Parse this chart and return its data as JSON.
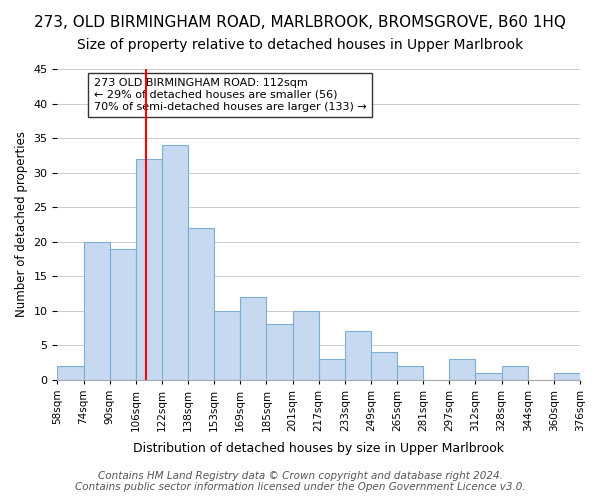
{
  "title": "273, OLD BIRMINGHAM ROAD, MARLBROOK, BROMSGROVE, B60 1HQ",
  "subtitle": "Size of property relative to detached houses in Upper Marlbrook",
  "xlabel": "Distribution of detached houses by size in Upper Marlbrook",
  "ylabel": "Number of detached properties",
  "bin_labels": [
    "58sqm",
    "74sqm",
    "90sqm",
    "106sqm",
    "122sqm",
    "138sqm",
    "153sqm",
    "169sqm",
    "185sqm",
    "201sqm",
    "217sqm",
    "233sqm",
    "249sqm",
    "265sqm",
    "281sqm",
    "297sqm",
    "312sqm",
    "328sqm",
    "344sqm",
    "360sqm",
    "376sqm"
  ],
  "bar_values": [
    2,
    20,
    19,
    32,
    34,
    22,
    10,
    12,
    8,
    10,
    3,
    7,
    4,
    2,
    0,
    3,
    1,
    2,
    0,
    1
  ],
  "bar_color": "#c6d9f0",
  "bar_edge_color": "#7bafd4",
  "grid_color": "#cccccc",
  "annotation_text": "273 OLD BIRMINGHAM ROAD: 112sqm\n← 29% of detached houses are smaller (56)\n70% of semi-detached houses are larger (133) →",
  "annotation_box_color": "#ffffff",
  "annotation_box_edge": "#333333",
  "ylim": [
    0,
    45
  ],
  "yticks": [
    0,
    5,
    10,
    15,
    20,
    25,
    30,
    35,
    40,
    45
  ],
  "footer_line1": "Contains HM Land Registry data © Crown copyright and database right 2024.",
  "footer_line2": "Contains public sector information licensed under the Open Government Licence v3.0.",
  "title_fontsize": 11,
  "subtitle_fontsize": 10,
  "footer_fontsize": 7.5
}
